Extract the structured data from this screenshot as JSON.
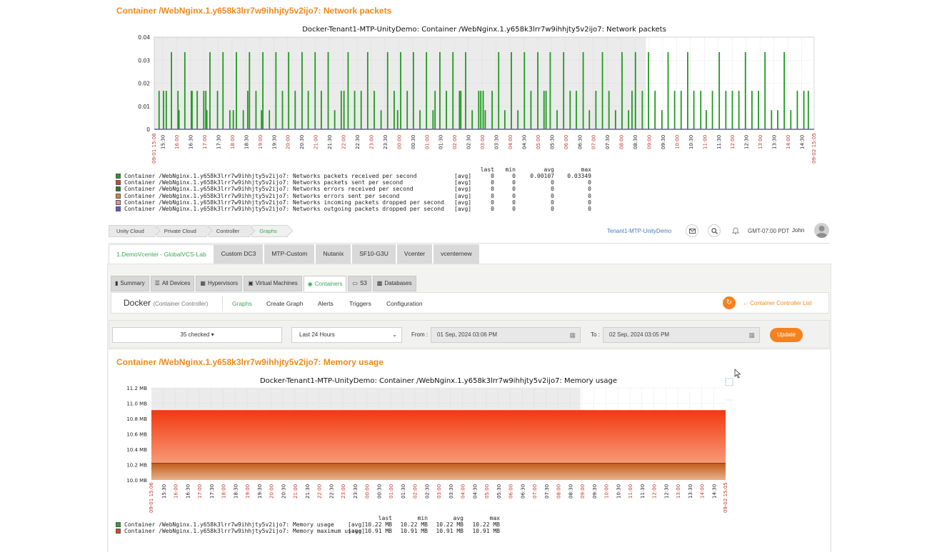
{
  "top_section": {
    "title": "Container /WebNginx.1.y658k3lrr7w9ihhjty5v2ijo7: Network packets"
  },
  "breadcrumb": [
    {
      "label": "Unity Cloud"
    },
    {
      "label": "Private Cloud"
    },
    {
      "label": "Controller"
    },
    {
      "label": "Graphs"
    }
  ],
  "header_right": {
    "tenant": "Tenant1-MTP-UnityDemo",
    "timezone": "GMT-07:00 PDT",
    "user": "John",
    "icons": [
      "mail-icon",
      "search-icon",
      "bell-icon",
      "user-avatar-icon"
    ]
  },
  "vcenter_tabs": [
    {
      "label": "1.DemoVcenter - GlobalVCS-Lab",
      "active": true
    },
    {
      "label": "Custom DC3"
    },
    {
      "label": "MTP-Custom"
    },
    {
      "label": "Nutanix"
    },
    {
      "label": "SF10-G3U"
    },
    {
      "label": "Vcenter"
    },
    {
      "label": "vcenternew"
    }
  ],
  "sub_tabs": [
    {
      "label": "Summary",
      "icon": "summary-icon"
    },
    {
      "label": "All Devices",
      "icon": "list-icon"
    },
    {
      "label": "Hypervisors",
      "icon": "hypervisor-icon"
    },
    {
      "label": "Virtual Machines",
      "icon": "vm-icon"
    },
    {
      "label": "Containers",
      "icon": "container-icon",
      "active": true
    },
    {
      "label": "S3",
      "icon": "s3-icon"
    },
    {
      "label": "Databases",
      "icon": "database-icon"
    }
  ],
  "controller_bar": {
    "title": "Docker",
    "subtitle": "(Container Controller)",
    "menu": [
      "Graphs",
      "Create Graph",
      "Alerts",
      "Triggers",
      "Configuration"
    ],
    "back_link": "Container Controller List"
  },
  "filters": {
    "items_select": "35 checked",
    "period_select": "Last 24 Hours",
    "from_label": "From :",
    "from_value": "01 Sep, 2024 03:06 PM",
    "to_label": "To :",
    "to_value": "02 Sep, 2024 03:05 PM",
    "update_label": "Update"
  },
  "memory_section": {
    "title": "Container /WebNginx.1.y658k3lrr7w9ihhjty5v2ijo7: Memory usage"
  },
  "chart_data": [
    {
      "type": "bar",
      "title": "Docker-Tenant1-MTP-UnityDemo: Container /WebNginx.1.y658k3lrr7w9ihhjty5v2ijo7: Network packets",
      "ylim": [
        0,
        0.04
      ],
      "y_ticks": [
        "0.04",
        "0.03",
        "0.02",
        "0.01",
        "0"
      ],
      "x_start": "09-01 15:06",
      "x_end": "09-02 15:05",
      "x_ticks": [
        {
          "label": "15:30"
        },
        {
          "label": "16:00",
          "red": true
        },
        {
          "label": "16:30"
        },
        {
          "label": "17:00",
          "red": true
        },
        {
          "label": "17:30"
        },
        {
          "label": "18:00",
          "red": true
        },
        {
          "label": "18:30"
        },
        {
          "label": "19:00",
          "red": true
        },
        {
          "label": "19:30"
        },
        {
          "label": "20:00",
          "red": true
        },
        {
          "label": "20:30"
        },
        {
          "label": "21:00",
          "red": true
        },
        {
          "label": "21:30"
        },
        {
          "label": "22:00",
          "red": true
        },
        {
          "label": "22:30"
        },
        {
          "label": "23:00",
          "red": true
        },
        {
          "label": "23:30"
        },
        {
          "label": "00:00",
          "red": true
        },
        {
          "label": "00:30"
        },
        {
          "label": "01:00",
          "red": true
        },
        {
          "label": "01:30"
        },
        {
          "label": "02:00",
          "red": true
        },
        {
          "label": "02:30"
        },
        {
          "label": "03:00",
          "red": true
        },
        {
          "label": "03:30"
        },
        {
          "label": "04:00",
          "red": true
        },
        {
          "label": "04:30"
        },
        {
          "label": "05:00",
          "red": true
        },
        {
          "label": "05:30"
        },
        {
          "label": "06:00",
          "red": true
        },
        {
          "label": "06:30"
        },
        {
          "label": "07:00",
          "red": true
        },
        {
          "label": "07:30"
        },
        {
          "label": "08:00",
          "red": true
        },
        {
          "label": "08:30"
        },
        {
          "label": "09:00",
          "red": true
        },
        {
          "label": "09:30"
        },
        {
          "label": "10:00",
          "red": true
        },
        {
          "label": "10:30"
        },
        {
          "label": "11:00",
          "red": true
        },
        {
          "label": "11:30"
        },
        {
          "label": "12:00",
          "red": true
        },
        {
          "label": "12:30"
        },
        {
          "label": "13:00",
          "red": true
        },
        {
          "label": "13:30"
        },
        {
          "label": "14:00",
          "red": true
        },
        {
          "label": "14:30"
        }
      ],
      "series": [
        {
          "name": "Container /WebNginx.1.y658k3lrr7w9ihhjty5v2ijo7: Networks packets received per second",
          "color": "#1f9a1f",
          "spikes": [
            {
              "t": 0.7,
              "v": 0.0167
            },
            {
              "t": 1.35,
              "v": 0.0167
            },
            {
              "t": 1.75,
              "v": 0.0167
            },
            {
              "t": 2.5,
              "v": 0.0335
            },
            {
              "t": 3.45,
              "v": 0.0167
            },
            {
              "t": 3.6,
              "v": 0.0083
            },
            {
              "t": 4.45,
              "v": 0.0335
            },
            {
              "t": 5.4,
              "v": 0.0167
            },
            {
              "t": 5.5,
              "v": 0.0167
            },
            {
              "t": 6.25,
              "v": 0.0167
            },
            {
              "t": 7.2,
              "v": 0.0167
            },
            {
              "t": 7.5,
              "v": 0.0167
            },
            {
              "t": 7.65,
              "v": 0.0083
            },
            {
              "t": 8.1,
              "v": 0.0335
            },
            {
              "t": 9.2,
              "v": 0.0167
            },
            {
              "t": 10.0,
              "v": 0.0335
            },
            {
              "t": 11.0,
              "v": 0.0083
            },
            {
              "t": 11.5,
              "v": 0.0083
            },
            {
              "t": 11.95,
              "v": 0.0335
            },
            {
              "t": 12.95,
              "v": 0.0083
            },
            {
              "t": 13.6,
              "v": 0.0167
            },
            {
              "t": 13.85,
              "v": 0.0335
            },
            {
              "t": 14.8,
              "v": 0.0167
            },
            {
              "t": 15.6,
              "v": 0.0083
            },
            {
              "t": 15.8,
              "v": 0.0335
            },
            {
              "t": 16.75,
              "v": 0.0083
            },
            {
              "t": 17.7,
              "v": 0.0335
            },
            {
              "t": 18.65,
              "v": 0.0167
            },
            {
              "t": 19.55,
              "v": 0.0335
            },
            {
              "t": 20.5,
              "v": 0.0167
            },
            {
              "t": 21.5,
              "v": 0.0335
            },
            {
              "t": 22.4,
              "v": 0.0167
            },
            {
              "t": 23.4,
              "v": 0.0335
            },
            {
              "t": 24.3,
              "v": 0.0167
            },
            {
              "t": 25.3,
              "v": 0.0335
            },
            {
              "t": 26.25,
              "v": 0.0083
            },
            {
              "t": 27.2,
              "v": 0.0167
            },
            {
              "t": 27.6,
              "v": 0.0167
            },
            {
              "t": 28.2,
              "v": 0.0335
            },
            {
              "t": 29.15,
              "v": 0.0167
            },
            {
              "t": 30.1,
              "v": 0.0167
            },
            {
              "t": 31.05,
              "v": 0.0335
            },
            {
              "t": 32.0,
              "v": 0.0167
            },
            {
              "t": 33.0,
              "v": 0.0083
            },
            {
              "t": 33.95,
              "v": 0.0335
            },
            {
              "t": 34.9,
              "v": 0.0167
            },
            {
              "t": 35.4,
              "v": 0.0083
            },
            {
              "t": 35.85,
              "v": 0.0335
            },
            {
              "t": 36.8,
              "v": 0.0167
            },
            {
              "t": 37.7,
              "v": 0.0335
            },
            {
              "t": 38.65,
              "v": 0.0083
            },
            {
              "t": 39.6,
              "v": 0.0335
            },
            {
              "t": 40.55,
              "v": 0.0083
            },
            {
              "t": 40.85,
              "v": 0.0167
            },
            {
              "t": 41.55,
              "v": 0.0335
            },
            {
              "t": 42.5,
              "v": 0.0167
            },
            {
              "t": 43.45,
              "v": 0.0335
            },
            {
              "t": 44.4,
              "v": 0.0167
            },
            {
              "t": 44.6,
              "v": 0.0167
            },
            {
              "t": 45.3,
              "v": 0.0335
            },
            {
              "t": 46.25,
              "v": 0.0083
            },
            {
              "t": 47.2,
              "v": 0.0167
            },
            {
              "t": 47.5,
              "v": 0.0167
            },
            {
              "t": 47.85,
              "v": 0.0167
            },
            {
              "t": 48.15,
              "v": 0.0083
            },
            {
              "t": 49.15,
              "v": 0.0167
            },
            {
              "t": 50.1,
              "v": 0.0335
            },
            {
              "t": 51.0,
              "v": 0.0083
            },
            {
              "t": 51.95,
              "v": 0.0335
            },
            {
              "t": 52.9,
              "v": 0.0083
            },
            {
              "t": 53.85,
              "v": 0.0335
            },
            {
              "t": 54.8,
              "v": 0.0167
            },
            {
              "t": 55.8,
              "v": 0.0335
            },
            {
              "t": 56.7,
              "v": 0.0167
            },
            {
              "t": 57.0,
              "v": 0.0167
            },
            {
              "t": 57.6,
              "v": 0.0335
            },
            {
              "t": 58.6,
              "v": 0.0083
            },
            {
              "t": 59.55,
              "v": 0.0335
            },
            {
              "t": 60.5,
              "v": 0.0167
            },
            {
              "t": 61.4,
              "v": 0.0167
            },
            {
              "t": 62.4,
              "v": 0.0335
            },
            {
              "t": 63.3,
              "v": 0.0083
            },
            {
              "t": 64.25,
              "v": 0.0167
            },
            {
              "t": 65.2,
              "v": 0.0335
            },
            {
              "t": 66.15,
              "v": 0.0167
            },
            {
              "t": 67.1,
              "v": 0.0083
            },
            {
              "t": 68.05,
              "v": 0.0335
            },
            {
              "t": 69.0,
              "v": 0.0083
            },
            {
              "t": 69.5,
              "v": 0.0167
            },
            {
              "t": 70.0,
              "v": 0.0335
            },
            {
              "t": 71.0,
              "v": 0.0167
            },
            {
              "t": 71.9,
              "v": 0.0335
            },
            {
              "t": 72.85,
              "v": 0.0167
            },
            {
              "t": 73.85,
              "v": 0.0083
            },
            {
              "t": 74.75,
              "v": 0.0335
            },
            {
              "t": 75.7,
              "v": 0.0167
            },
            {
              "t": 76.65,
              "v": 0.0167
            },
            {
              "t": 77.6,
              "v": 0.0335
            },
            {
              "t": 78.5,
              "v": 0.0167
            },
            {
              "t": 79.5,
              "v": 0.0167
            },
            {
              "t": 80.3,
              "v": 0.0083
            },
            {
              "t": 81.2,
              "v": 0.0167
            },
            {
              "t": 82.2,
              "v": 0.0335
            },
            {
              "t": 83.15,
              "v": 0.0167
            },
            {
              "t": 84.1,
              "v": 0.0167
            },
            {
              "t": 85.05,
              "v": 0.0167
            },
            {
              "t": 86.0,
              "v": 0.0335
            },
            {
              "t": 86.95,
              "v": 0.0167
            },
            {
              "t": 87.9,
              "v": 0.0167
            },
            {
              "t": 88.85,
              "v": 0.0335
            },
            {
              "t": 89.8,
              "v": 0.0083
            },
            {
              "t": 90.7,
              "v": 0.0083
            },
            {
              "t": 91.65,
              "v": 0.0335
            },
            {
              "t": 92.6,
              "v": 0.0083
            },
            {
              "t": 93.55,
              "v": 0.0167
            },
            {
              "t": 94.5,
              "v": 0.0167
            },
            {
              "t": 95.15,
              "v": 0.0167
            }
          ]
        },
        {
          "name": "Container /WebNginx.1.y658k3lrr7w9ihhjty5v2ijo7: Networks packets sent per second",
          "color": "#d7452b"
        },
        {
          "name": "Container /WebNginx.1.y658k3lrr7w9ihhjty5v2ijo7: Networks errors received per second",
          "color": "#2a7a2a"
        },
        {
          "name": "Container /WebNginx.1.y658k3lrr7w9ihhjty5v2ijo7: Networks errors sent per second",
          "color": "#c9902b"
        },
        {
          "name": "Container /WebNginx.1.y658k3lrr7w9ihhjty5v2ijo7: Networks incoming packets dropped per second",
          "color": "#e58ea5"
        },
        {
          "name": "Container /WebNginx.1.y658k3lrr7w9ihhjty5v2ijo7: Networks outgoing packets dropped per second",
          "color": "#6a56c0"
        }
      ],
      "legend_header": [
        "last",
        "min",
        "avg",
        "max"
      ],
      "legend_rows": [
        {
          "tag": "[avg]",
          "last": "0",
          "min": "0",
          "avg": "0.00107",
          "max": "0.03349"
        },
        {
          "tag": "[avg]",
          "last": "0",
          "min": "0",
          "avg": "0",
          "max": "0"
        },
        {
          "tag": "[avg]",
          "last": "0",
          "min": "0",
          "avg": "0",
          "max": "0"
        },
        {
          "tag": "[avg]",
          "last": "0",
          "min": "0",
          "avg": "0",
          "max": "0"
        },
        {
          "tag": "[avg]",
          "last": "0",
          "min": "0",
          "avg": "0",
          "max": "0"
        },
        {
          "tag": "[avg]",
          "last": "0",
          "min": "0",
          "avg": "0",
          "max": "0"
        }
      ]
    },
    {
      "type": "area",
      "title": "Docker-Tenant1-MTP-UnityDemo: Container /WebNginx.1.y658k3lrr7w9ihhjty5v2ijo7: Memory usage",
      "ylim": [
        10.0,
        11.2
      ],
      "y_ticks": [
        "11.2 MB",
        "11.0 MB",
        "10.8 MB",
        "10.6 MB",
        "10.4 MB",
        "10.2 MB",
        "10.0 MB"
      ],
      "x_start": "09-01 15:06",
      "x_end": "09-02 15:05",
      "series": [
        {
          "name": "Container /WebNginx.1.y658k3lrr7w9ihhjty5v2ijo7: Memory usage",
          "color": "#2e9e2e",
          "value_mb": 10.22
        },
        {
          "name": "Container /WebNginx.1.y658k3lrr7w9ihhjty5v2ijo7: Memory maximum usage",
          "color": "#e8401c",
          "value_mb": 10.91
        }
      ],
      "legend_header": [
        "last",
        "min",
        "avg",
        "max"
      ],
      "legend_rows": [
        {
          "tag": "[avg]",
          "last": "10.22 MB",
          "min": "10.22 MB",
          "avg": "10.22 MB",
          "max": "10.22 MB"
        },
        {
          "tag": "[avg]",
          "last": "10.91 MB",
          "min": "10.91 MB",
          "avg": "10.91 MB",
          "max": "10.91 MB"
        }
      ]
    }
  ]
}
